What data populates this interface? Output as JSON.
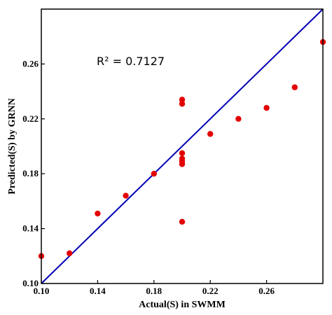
{
  "chart_data": {
    "type": "scatter",
    "xlabel": "Actual(S) in SWMM",
    "ylabel": "Predicted(S) by GRNN",
    "xlim": [
      0.1,
      0.3
    ],
    "ylim": [
      0.1,
      0.3
    ],
    "xticks": [
      "0.10",
      "0.14",
      "0.18",
      "0.22",
      "0.26"
    ],
    "yticks": [
      "0.10",
      "0.14",
      "0.18",
      "0.22",
      "0.26"
    ],
    "annotation": "R² = 0.7127",
    "grid": false,
    "reference_line": {
      "x": [
        0.1,
        0.3
      ],
      "y": [
        0.1,
        0.3
      ]
    },
    "points": [
      {
        "x": 0.1,
        "y": 0.12
      },
      {
        "x": 0.12,
        "y": 0.122
      },
      {
        "x": 0.14,
        "y": 0.151
      },
      {
        "x": 0.16,
        "y": 0.164
      },
      {
        "x": 0.18,
        "y": 0.18
      },
      {
        "x": 0.2,
        "y": 0.145
      },
      {
        "x": 0.2,
        "y": 0.187
      },
      {
        "x": 0.2,
        "y": 0.189
      },
      {
        "x": 0.2,
        "y": 0.191
      },
      {
        "x": 0.2,
        "y": 0.195
      },
      {
        "x": 0.2,
        "y": 0.231
      },
      {
        "x": 0.2,
        "y": 0.234
      },
      {
        "x": 0.22,
        "y": 0.209
      },
      {
        "x": 0.24,
        "y": 0.22
      },
      {
        "x": 0.26,
        "y": 0.228
      },
      {
        "x": 0.28,
        "y": 0.243
      },
      {
        "x": 0.3,
        "y": 0.276
      }
    ],
    "colors": {
      "points": "#e30000",
      "line": "#0000b4",
      "axes": "#000000"
    }
  }
}
